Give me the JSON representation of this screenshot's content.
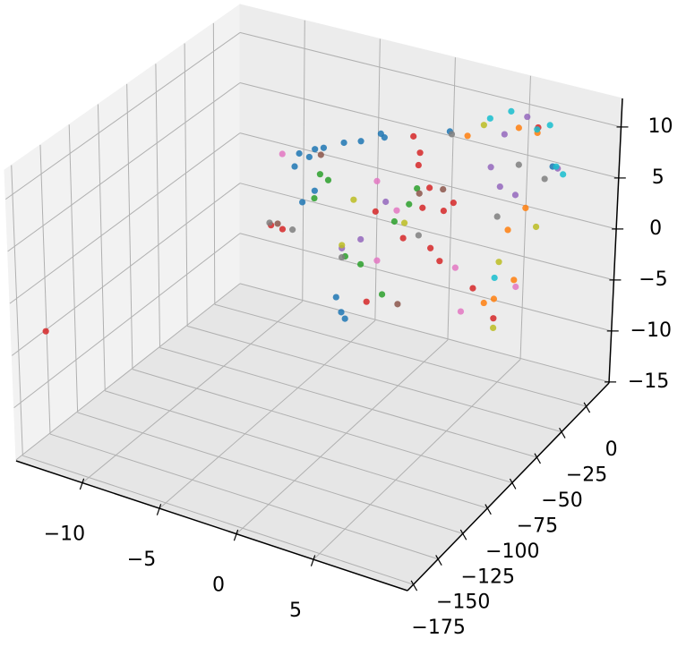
{
  "chart_data": {
    "type": "scatter3d",
    "xlim": [
      -14.3,
      11.1
    ],
    "ylim": [
      -181,
      23
    ],
    "zlim": [
      -15.1,
      12.8
    ],
    "xticks": [
      {
        "value": -10,
        "label": "−10"
      },
      {
        "value": -5,
        "label": "−5"
      },
      0,
      5
    ],
    "yticks": [
      {
        "value": -175,
        "label": "−175"
      },
      {
        "value": -150,
        "label": "−150"
      },
      {
        "value": -125,
        "label": "−125"
      },
      {
        "value": -100,
        "label": "−100"
      },
      {
        "value": -75,
        "label": "−75"
      },
      {
        "value": -50,
        "label": "−50"
      },
      {
        "value": -25,
        "label": "−25"
      },
      0
    ],
    "zticks": [
      {
        "value": -15,
        "label": "−15"
      },
      {
        "value": -10,
        "label": "−10"
      },
      {
        "value": -5,
        "label": "−5"
      },
      0,
      5,
      10
    ],
    "grid": true,
    "series": [
      {
        "color": "#1f77b4",
        "x": [
          -8.0,
          -7.1,
          -6.3,
          -5.1,
          -3.9,
          -2.8,
          -2.2,
          -8.3,
          -7.4,
          -7.1,
          -7.7,
          -5.1,
          -4.7,
          -5.6,
          1.9,
          8.8
        ],
        "y": [
          -8,
          -6,
          -9,
          -7,
          -8,
          -5,
          -10,
          -8,
          -7,
          -6,
          -9,
          -8,
          -10,
          -6,
          -7,
          -8
        ],
        "z": [
          3.0,
          3.6,
          4.3,
          5.1,
          5.8,
          6.7,
          7.0,
          1.6,
          2.8,
          -0.5,
          -1.6,
          -11.5,
          -11.8,
          -10.4,
          8.9,
          8.2
        ]
      },
      {
        "color": "#d62728",
        "x": [
          -0.5,
          0.1,
          -0.2,
          0.7,
          0.4,
          1.6,
          2.1,
          -2.8,
          -1.0,
          0.7,
          1.4,
          -9.8,
          -9.1,
          3.6,
          5.3,
          7.7,
          -3.4,
          -13.0
        ],
        "y": [
          -7,
          -9,
          -6,
          -8,
          -10,
          -7,
          -5,
          -9,
          -8,
          -6,
          -7,
          -9,
          -8,
          -6,
          -10,
          -7,
          -8,
          -168
        ],
        "z": [
          7.5,
          6.3,
          4.7,
          3.0,
          1.1,
          1.0,
          1.8,
          -0.6,
          -2.6,
          -3.1,
          -4.0,
          -4.7,
          -4.9,
          -5.9,
          -7.8,
          11.5,
          -9.8,
          -3.1
        ]
      },
      {
        "color": "#2ca02c",
        "x": [
          -6.6,
          -6.2,
          -6.9,
          -0.2,
          -0.5,
          -1.6,
          -2.5,
          -4.8,
          -3.9
        ],
        "y": [
          -8,
          -6,
          -9,
          -7,
          -10,
          -8,
          -6,
          -9,
          -7
        ],
        "z": [
          1.5,
          0.9,
          -0.9,
          2.5,
          1.1,
          -1.2,
          -8.9,
          -5.8,
          -6.4
        ]
      },
      {
        "color": "#ff7f0e",
        "x": [
          7.1,
          5.9,
          7.8,
          3.0,
          4.5,
          5.3,
          6.4,
          6.5
        ],
        "y": [
          -8,
          -7,
          -9,
          -6,
          -8,
          -10,
          -7,
          -8
        ],
        "z": [
          3.5,
          0.8,
          11.2,
          8.8,
          -6.8,
          -5.9,
          -3.9,
          11.1
        ]
      },
      {
        "color": "#9467bd",
        "x": [
          4.8,
          5.3,
          6.4,
          9.0,
          -5.1,
          -3.7,
          5.5,
          7.1,
          -2.2
        ],
        "y": [
          -9,
          -7,
          -8,
          -6,
          -8,
          -10,
          -7,
          -9,
          -8
        ],
        "z": [
          6.7,
          4.8,
          4.5,
          7.9,
          -5.2,
          -3.6,
          10.0,
          12.5,
          0.5
        ]
      },
      {
        "color": "#8c564b",
        "x": [
          -9.5,
          1.6,
          0.1,
          -6.7,
          -1.3
        ],
        "y": [
          -7,
          -8,
          -9,
          -6,
          -8
        ],
        "z": [
          -4.6,
          3.2,
          2.3,
          3.2,
          -9.2
        ]
      },
      {
        "color": "#e377c2",
        "x": [
          -2.8,
          -1.6,
          2.6,
          -2.8,
          6.6,
          3.1,
          -9.2
        ],
        "y": [
          -8,
          -6,
          -9,
          -7,
          -8,
          -10,
          -7
        ],
        "z": [
          2.3,
          -0.3,
          -4.0,
          -5.6,
          -4.4,
          -8.0,
          2.4
        ]
      },
      {
        "color": "#7f7f7f",
        "x": [
          -9.9,
          -8.5,
          -5.1,
          5.1,
          8.3,
          0.1,
          6.5,
          2.1
        ],
        "y": [
          -9,
          -7,
          -8,
          -6,
          -8,
          -9,
          -7,
          -8
        ],
        "z": [
          -4.5,
          -4.8,
          -6.1,
          1.7,
          6.8,
          -1.8,
          7.4,
          8.8
        ]
      },
      {
        "color": "#bcbd22",
        "x": [
          -5.1,
          -1.0,
          5.5,
          7.7,
          4.2,
          5.1,
          -4.2
        ],
        "y": [
          -8,
          -7,
          -9,
          -6,
          -8,
          -7,
          -10
        ],
        "z": [
          -4.9,
          -1.2,
          -2.3,
          1.7,
          10.5,
          -9.1,
          0.1
        ]
      },
      {
        "color": "#17becf",
        "x": [
          5.9,
          7.7,
          8.4,
          9.1,
          9.5,
          5.1,
          4.6
        ],
        "y": [
          -7,
          -8,
          -6,
          -9,
          -8,
          -7,
          -8
        ],
        "z": [
          12.4,
          11.4,
          11.9,
          8.4,
          7.7,
          -4.2,
          11.3
        ]
      }
    ]
  }
}
